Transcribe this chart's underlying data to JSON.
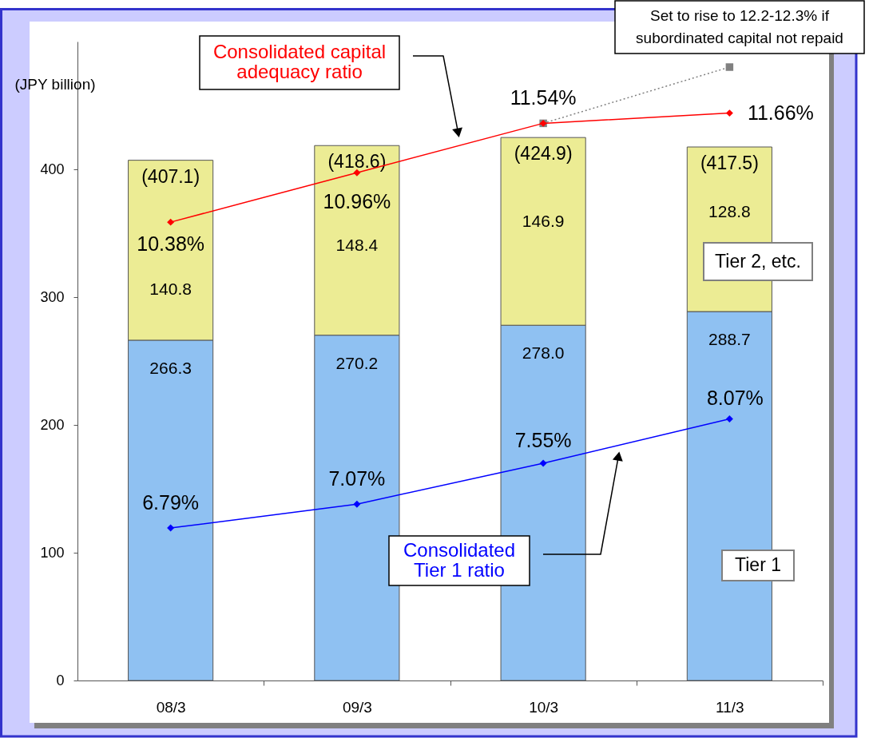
{
  "chart_data": {
    "type": "bar",
    "stacked": true,
    "ylabel": "(JPY billion)",
    "categories": [
      "08/3",
      "09/3",
      "10/3",
      "11/3"
    ],
    "ylim": [
      0,
      500
    ],
    "yticks": [
      0,
      100,
      200,
      300,
      400
    ],
    "y2lim": [
      5,
      12.5
    ],
    "series": [
      {
        "name": "Tier 1",
        "color": "#8fc1f2",
        "values": [
          266.3,
          270.2,
          278.0,
          288.7
        ],
        "value_labels": [
          "266.3",
          "270.2",
          "278.0",
          "288.7"
        ]
      },
      {
        "name": "Tier 2, etc.",
        "color": "#ecec94",
        "values": [
          140.8,
          148.4,
          146.9,
          128.8
        ],
        "value_labels": [
          "140.8",
          "148.4",
          "146.9",
          "128.8"
        ]
      },
      {
        "type": "line",
        "axis": "y2",
        "color": "#808080",
        "line_style": "dotted",
        "marker": "square",
        "values": [
          null,
          null,
          11.54,
          12.2
        ]
      },
      {
        "type": "line",
        "axis": "y2",
        "name": "Consolidated capital adequacy ratio",
        "color": "#ff0000",
        "marker": "diamond",
        "values": [
          10.38,
          10.96,
          11.54,
          11.66
        ],
        "value_labels": [
          "10.38%",
          "10.96%",
          "11.54%",
          "11.66%"
        ]
      },
      {
        "type": "line",
        "axis": "y2",
        "name": "Consolidated Tier 1 ratio",
        "color": "#0000ff",
        "marker": "diamond",
        "values": [
          6.79,
          7.07,
          7.55,
          8.07
        ],
        "value_labels": [
          "6.79%",
          "7.07%",
          "7.55%",
          "8.07%"
        ]
      }
    ],
    "totals": [
      "(407.1)",
      "(418.6)",
      "(424.9)",
      "(417.5)"
    ],
    "annotations": [
      "Set to rise to 12.2-12.3% if subordinated capital not repaid"
    ]
  }
}
